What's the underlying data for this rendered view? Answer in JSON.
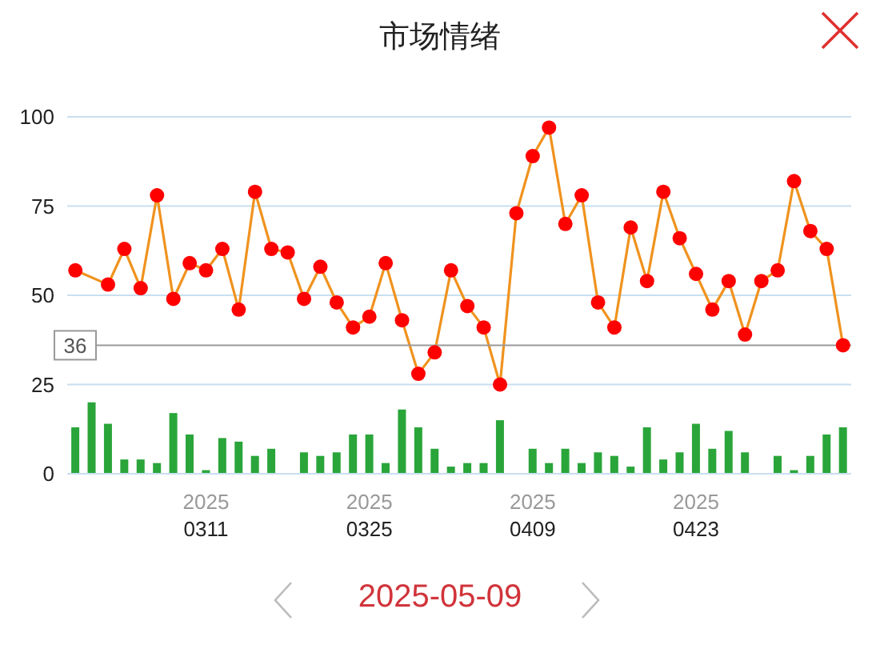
{
  "chart_data": {
    "type": "line",
    "title": "市场情绪",
    "categories": [
      null,
      null,
      null,
      null,
      null,
      null,
      null,
      null,
      "2025\n0311",
      null,
      null,
      null,
      null,
      null,
      null,
      null,
      null,
      null,
      "2025\n0325",
      null,
      null,
      null,
      null,
      null,
      null,
      null,
      null,
      null,
      "2025\n0409",
      null,
      null,
      null,
      null,
      null,
      null,
      null,
      null,
      null,
      "2025\n0423",
      null,
      null,
      null,
      null,
      null,
      null,
      null,
      null,
      null
    ],
    "series": [
      {
        "type": "bar",
        "color": "#2aa53a",
        "values": [
          13,
          20,
          14,
          4,
          4,
          3,
          17,
          11,
          1,
          10,
          9,
          5,
          7,
          0,
          6,
          5,
          6,
          11,
          11,
          3,
          18,
          13,
          7,
          2,
          3,
          3,
          15,
          0,
          7,
          3,
          7,
          3,
          6,
          5,
          2,
          13,
          4,
          6,
          14,
          7,
          12,
          6,
          0,
          5,
          1,
          5,
          11,
          13
        ]
      },
      {
        "color": "#ff0000",
        "values": [
          57,
          null,
          53,
          63,
          52,
          78,
          49,
          59,
          57,
          63,
          46,
          79,
          63,
          62,
          49,
          58,
          48,
          41,
          44,
          59,
          43,
          28,
          34,
          57,
          47,
          41,
          25,
          73,
          89,
          97,
          70,
          78,
          48,
          41,
          69,
          54,
          79,
          66,
          56,
          46,
          54,
          39,
          54,
          57,
          82,
          68,
          63,
          36
        ]
      }
    ],
    "ylim": [
      0,
      100
    ],
    "yticks": [
      0,
      25,
      50,
      75,
      100
    ],
    "grid": "y",
    "marker": "circle",
    "legend": false,
    "ref_lines": [
      {
        "axis": "y",
        "value": 36,
        "label": "36",
        "color": "#999999"
      }
    ],
    "annotations": [
      "2025-05-09"
    ]
  }
}
